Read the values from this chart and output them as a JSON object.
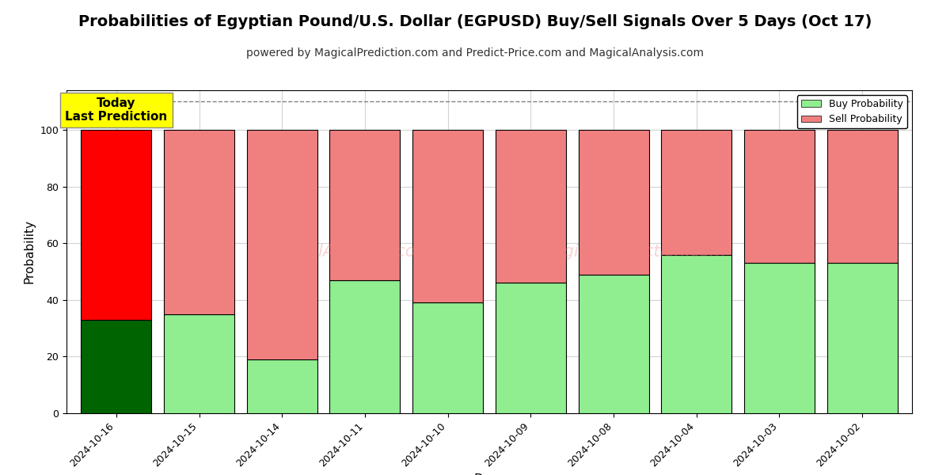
{
  "title": "Probabilities of Egyptian Pound/U.S. Dollar (EGPUSD) Buy/Sell Signals Over 5 Days (Oct 17)",
  "subtitle": "powered by MagicalPrediction.com and Predict-Price.com and MagicalAnalysis.com",
  "xlabel": "Days",
  "ylabel": "Probability",
  "categories": [
    "2024-10-16",
    "2024-10-15",
    "2024-10-14",
    "2024-10-11",
    "2024-10-10",
    "2024-10-09",
    "2024-10-08",
    "2024-10-04",
    "2024-10-03",
    "2024-10-02"
  ],
  "buy_values": [
    33,
    35,
    19,
    47,
    39,
    46,
    49,
    56,
    53,
    53
  ],
  "sell_values": [
    67,
    65,
    81,
    53,
    61,
    54,
    51,
    44,
    47,
    47
  ],
  "today_buy_color": "#006400",
  "today_sell_color": "#ff0000",
  "buy_color": "#90ee90",
  "sell_color": "#f08080",
  "today_annotation_bg": "#ffff00",
  "today_annotation_text": "Today\nLast Prediction",
  "ylim": [
    0,
    114
  ],
  "yticks": [
    0,
    20,
    40,
    60,
    80,
    100
  ],
  "dashed_line_y": 110,
  "legend_buy_label": "Buy Probability",
  "legend_sell_label": "Sell Probability",
  "title_fontsize": 14,
  "subtitle_fontsize": 10,
  "bar_edge_color": "#000000",
  "bar_edge_width": 0.8,
  "bar_width": 0.85
}
